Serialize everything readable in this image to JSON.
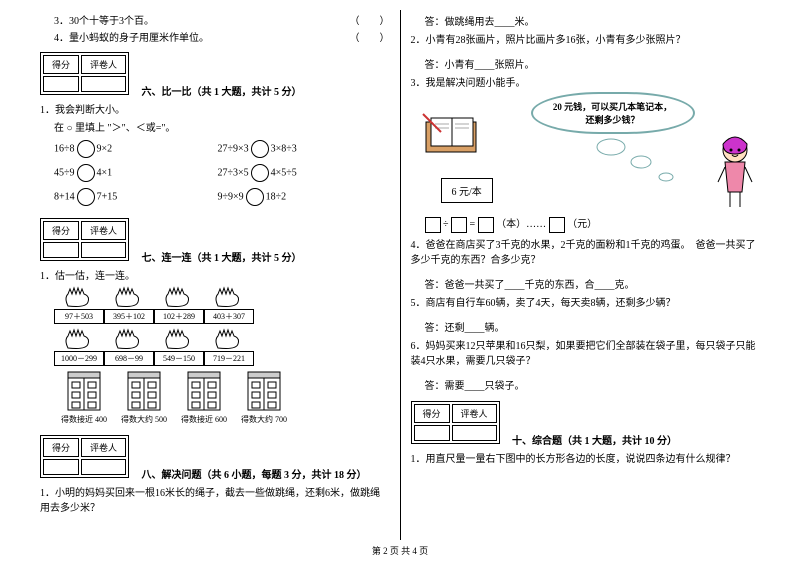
{
  "left": {
    "tf3": "3．30个十等于3个百。",
    "tf4": "4．量小蚂蚁的身子用厘米作单位。",
    "paren": "（　　）",
    "score_h1": "得分",
    "score_h2": "评卷人",
    "s6_title": "六、比一比（共 1 大题，共计 5 分）",
    "s6_q1": "1．我会判断大小。",
    "s6_instr": "在 ○ 里填上 \"＞\"、＜或=\"。",
    "cmp": {
      "r1a_l": "16÷8",
      "r1a_r": "9×2",
      "r1b_l": "27÷9×3",
      "r1b_r": "3×8÷3",
      "r2a_l": "45÷9",
      "r2a_r": "4×1",
      "r2b_l": "27÷3×5",
      "r2b_r": "4×5÷5",
      "r3a_l": "8+14",
      "r3a_r": "7+15",
      "r3b_l": "9÷9×9",
      "r3b_r": "18÷2"
    },
    "s7_title": "七、连一连（共 1 大题，共计 5 分）",
    "s7_q1": "1．估一估，连一连。",
    "hands_top": [
      "97＋503",
      "395＋102",
      "102＋289",
      "403＋307"
    ],
    "hands_bot": [
      "1000－299",
      "698－99",
      "549－150",
      "719－221"
    ],
    "buildings": [
      "得数接近 400",
      "得数大约 500",
      "得数接近 600",
      "得数大约 700"
    ],
    "s8_title": "八、解决问题（共 6 小题，每题 3 分，共计 18 分）",
    "s8_q1": "1．小明的妈妈买回来一根16米长的绳子，截去一些做跳绳，还剩6米，做跳绳用去多少米？"
  },
  "right": {
    "ans1": "答：做跳绳用去____米。",
    "q2": "2．小青有28张画片，照片比画片多16张，小青有多少张照片？",
    "ans2": "答：小青有____张照片。",
    "q3": "3．我是解决问题小能手。",
    "bubble_l1": "20 元钱，可以买几本笔记本，",
    "bubble_l2": "还剩多少钱？",
    "price": "6 元/本",
    "eq_tail": "（本）……",
    "eq_yuan": "（元）",
    "q4": "4．爸爸在商店买了3千克的水果，2千克的面粉和1千克的鸡蛋。　爸爸一共买了多少千克的东西？合多少克？",
    "ans4": "答：爸爸一共买了____千克的东西，合____克。",
    "q5": "5．商店有自行车60辆，卖了4天，每天卖8辆，还剩多少辆？",
    "ans5": "答：还剩____辆。",
    "q6": "6．妈妈买来12只苹果和16只梨，如果要把它们全部装在袋子里，每只袋子只能装4只水果，需要几只袋子？",
    "ans6": "答：需要____只袋子。",
    "s10_title": "十、综合题（共 1 大题，共计 10 分）",
    "s10_q1": "1．用直尺量一量右下图中的长方形各边的长度，说说四条边有什么规律？"
  },
  "footer": "第 2 页 共 4 页"
}
